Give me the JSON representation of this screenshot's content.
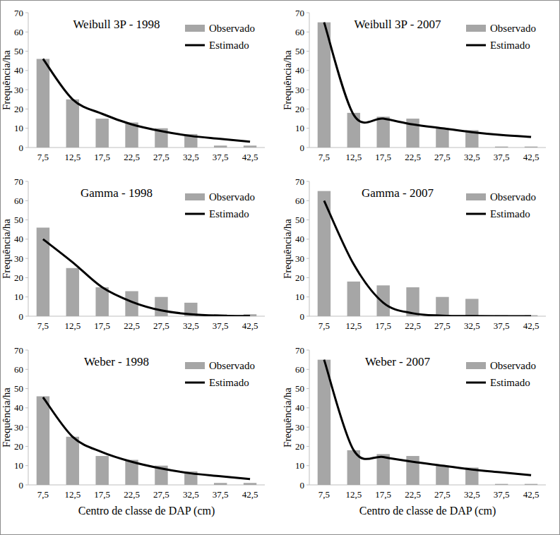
{
  "chart_data": [
    {
      "type": "bar",
      "title": "Weibull 3P - 1998",
      "ylabel": "Frequência/ha",
      "categories": [
        "7,5",
        "12,5",
        "17,5",
        "22,5",
        "27,5",
        "32,5",
        "37,5",
        "42,5"
      ],
      "series": [
        {
          "name": "Observado",
          "type": "bar",
          "color": "#a6a6a6",
          "values": [
            46,
            25,
            15,
            13,
            10,
            7,
            1,
            1
          ]
        },
        {
          "name": "Estimado",
          "type": "line",
          "color": "#000000",
          "values": [
            46,
            25,
            17.5,
            12,
            8.5,
            6,
            4.5,
            3
          ]
        }
      ],
      "ylim": [
        0,
        70
      ],
      "yticks": [
        0,
        10,
        20,
        30,
        40,
        50,
        60,
        70
      ],
      "legend": "upper right"
    },
    {
      "type": "bar",
      "title": "Weibull 3P - 2007",
      "ylabel": "Frequência/ha",
      "categories": [
        "7,5",
        "12,5",
        "17,5",
        "22,5",
        "27,5",
        "32,5",
        "37,5",
        "42,5"
      ],
      "series": [
        {
          "name": "Observado",
          "type": "bar",
          "color": "#a6a6a6",
          "values": [
            65,
            18,
            16,
            15,
            10,
            9,
            0.5,
            0.5
          ]
        },
        {
          "name": "Estimado",
          "type": "line",
          "color": "#000000",
          "values": [
            65,
            17,
            15,
            12,
            10,
            8,
            6.5,
            5.5
          ]
        }
      ],
      "ylim": [
        0,
        70
      ],
      "yticks": [
        0,
        10,
        20,
        30,
        40,
        50,
        60,
        70
      ],
      "legend": "upper right"
    },
    {
      "type": "bar",
      "title": "Gamma - 1998",
      "ylabel": "Frequência/ha",
      "categories": [
        "7,5",
        "12,5",
        "17,5",
        "22,5",
        "27,5",
        "32,5",
        "37,5",
        "42,5"
      ],
      "series": [
        {
          "name": "Observado",
          "type": "bar",
          "color": "#a6a6a6",
          "values": [
            46,
            25,
            15,
            13,
            10,
            7,
            1,
            1
          ]
        },
        {
          "name": "Estimado",
          "type": "line",
          "color": "#000000",
          "values": [
            40,
            28,
            15,
            7.5,
            3,
            1,
            0.3,
            0.1
          ]
        }
      ],
      "ylim": [
        0,
        70
      ],
      "yticks": [
        0,
        10,
        20,
        30,
        40,
        50,
        60,
        70
      ],
      "legend": "upper right"
    },
    {
      "type": "bar",
      "title": "Gamma - 2007",
      "ylabel": "Frequência/ha",
      "categories": [
        "7,5",
        "12,5",
        "17,5",
        "22,5",
        "27,5",
        "32,5",
        "37,5",
        "42,5"
      ],
      "series": [
        {
          "name": "Observado",
          "type": "bar",
          "color": "#a6a6a6",
          "values": [
            65,
            18,
            16,
            15,
            10,
            9,
            0.5,
            0.5
          ]
        },
        {
          "name": "Estimado",
          "type": "line",
          "color": "#000000",
          "values": [
            60,
            27,
            7,
            1.5,
            0.3,
            0.05,
            0,
            0
          ]
        }
      ],
      "ylim": [
        0,
        70
      ],
      "yticks": [
        0,
        10,
        20,
        30,
        40,
        50,
        60,
        70
      ],
      "legend": "upper right"
    },
    {
      "type": "bar",
      "title": "Weber - 1998",
      "ylabel": "Frequência/ha",
      "xlabel": "Centro de classe de DAP (cm)",
      "categories": [
        "7,5",
        "12,5",
        "17,5",
        "22,5",
        "27,5",
        "32,5",
        "37,5",
        "42,5"
      ],
      "series": [
        {
          "name": "Observado",
          "type": "bar",
          "color": "#a6a6a6",
          "values": [
            46,
            25,
            15,
            13,
            10,
            7,
            1,
            1
          ]
        },
        {
          "name": "Estimado",
          "type": "line",
          "color": "#000000",
          "values": [
            45.5,
            25,
            17,
            12,
            8.5,
            6,
            4.5,
            3
          ]
        }
      ],
      "ylim": [
        0,
        70
      ],
      "yticks": [
        0,
        10,
        20,
        30,
        40,
        50,
        60,
        70
      ],
      "legend": "upper right"
    },
    {
      "type": "bar",
      "title": "Weber - 2007",
      "ylabel": "Frequência/ha",
      "xlabel": "Centro de classe de DAP (cm)",
      "categories": [
        "7,5",
        "12,5",
        "17,5",
        "22,5",
        "27,5",
        "32,5",
        "37,5",
        "42,5"
      ],
      "series": [
        {
          "name": "Observado",
          "type": "bar",
          "color": "#a6a6a6",
          "values": [
            65,
            18,
            16,
            15,
            10,
            9,
            0.5,
            0.5
          ]
        },
        {
          "name": "Estimado",
          "type": "line",
          "color": "#000000",
          "values": [
            65,
            18,
            14.5,
            12,
            10,
            8,
            6.5,
            5
          ]
        }
      ],
      "ylim": [
        0,
        70
      ],
      "yticks": [
        0,
        10,
        20,
        30,
        40,
        50,
        60,
        70
      ],
      "legend": "upper right"
    }
  ]
}
